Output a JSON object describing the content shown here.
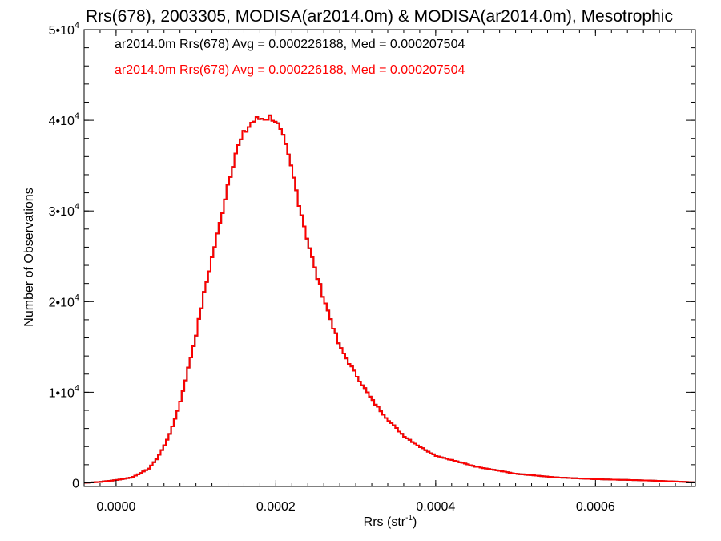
{
  "colors": {
    "series_1": "#000000",
    "series_2": "#ff0000",
    "axes": "#000000",
    "background": "#ffffff"
  },
  "chart_data": {
    "type": "line",
    "title": "Rrs(678), 2003305, MODISA(ar2014.0m) & MODISA(ar2014.0m), Mesotrophic",
    "xlabel": "Rrs (str",
    "xlabel_sup": "-1",
    "xlabel_suffix": ")",
    "ylabel": "Number of Observations",
    "xlim": [
      -4e-05,
      0.000725
    ],
    "ylim": [
      -400,
      50000
    ],
    "x_ticks": [
      {
        "value": 0.0,
        "label": "0.0000"
      },
      {
        "value": 0.0002,
        "label": "0.0002"
      },
      {
        "value": 0.0004,
        "label": "0.0004"
      },
      {
        "value": 0.0006,
        "label": "0.0006"
      }
    ],
    "y_ticks": [
      {
        "value": 0,
        "label": "0",
        "sup": ""
      },
      {
        "value": 10000,
        "label": "1•10",
        "sup": "4"
      },
      {
        "value": 20000,
        "label": "2•10",
        "sup": "4"
      },
      {
        "value": 30000,
        "label": "3•10",
        "sup": "4"
      },
      {
        "value": 40000,
        "label": "4•10",
        "sup": "4"
      },
      {
        "value": 50000,
        "label": "5•10",
        "sup": "4"
      }
    ],
    "legend": {
      "placement": "top-left",
      "entries": [
        "ar2014.0m Rrs(678) Avg = 0.000226188, Med = 0.000207504",
        "ar2014.0m Rrs(678) Avg = 0.000226188, Med = 0.000207504"
      ]
    },
    "series": [
      {
        "name": "ar2014.0m Rrs(678)",
        "color": "#000000",
        "x": [
          -4e-05,
          -2e-05,
          0.0,
          2e-05,
          4e-05,
          5e-05,
          6e-05,
          7e-05,
          8e-05,
          9e-05,
          0.0001,
          0.00011,
          0.00012,
          0.00013,
          0.00014,
          0.00015,
          0.00016,
          0.00017,
          0.00018,
          0.00019,
          0.000195,
          0.0002,
          0.00021,
          0.00022,
          0.00023,
          0.00024,
          0.00025,
          0.00026,
          0.00027,
          0.00028,
          0.0003,
          0.00032,
          0.00034,
          0.00036,
          0.00038,
          0.0004,
          0.00045,
          0.0005,
          0.00055,
          0.0006,
          0.00065,
          0.0007,
          0.000725
        ],
        "values": [
          0,
          100,
          300,
          600,
          1500,
          2500,
          4000,
          6000,
          8800,
          12500,
          16300,
          20800,
          24800,
          28600,
          33000,
          36500,
          38500,
          39800,
          40200,
          40300,
          40350,
          40000,
          37800,
          34500,
          30500,
          26700,
          23200,
          20400,
          17700,
          15000,
          12000,
          9200,
          7000,
          5200,
          4000,
          3000,
          1800,
          1000,
          600,
          400,
          300,
          150,
          50
        ]
      },
      {
        "name": "ar2014.0m Rrs(678)",
        "color": "#ff0000",
        "x": [
          -4e-05,
          -2e-05,
          0.0,
          2e-05,
          4e-05,
          5e-05,
          6e-05,
          7e-05,
          8e-05,
          9e-05,
          0.0001,
          0.00011,
          0.00012,
          0.00013,
          0.00014,
          0.00015,
          0.00016,
          0.00017,
          0.00018,
          0.00019,
          0.000195,
          0.0002,
          0.00021,
          0.00022,
          0.00023,
          0.00024,
          0.00025,
          0.00026,
          0.00027,
          0.00028,
          0.0003,
          0.00032,
          0.00034,
          0.00036,
          0.00038,
          0.0004,
          0.00045,
          0.0005,
          0.00055,
          0.0006,
          0.00065,
          0.0007,
          0.000725
        ],
        "values": [
          0,
          100,
          300,
          600,
          1500,
          2500,
          4000,
          6000,
          8800,
          12500,
          16300,
          20800,
          24800,
          28600,
          33000,
          36500,
          38500,
          39800,
          40200,
          40300,
          40350,
          40000,
          37800,
          34500,
          30500,
          26700,
          23200,
          20400,
          17700,
          15000,
          12000,
          9200,
          7000,
          5200,
          4000,
          3000,
          1800,
          1000,
          600,
          400,
          300,
          150,
          50
        ]
      }
    ],
    "grid": false
  }
}
